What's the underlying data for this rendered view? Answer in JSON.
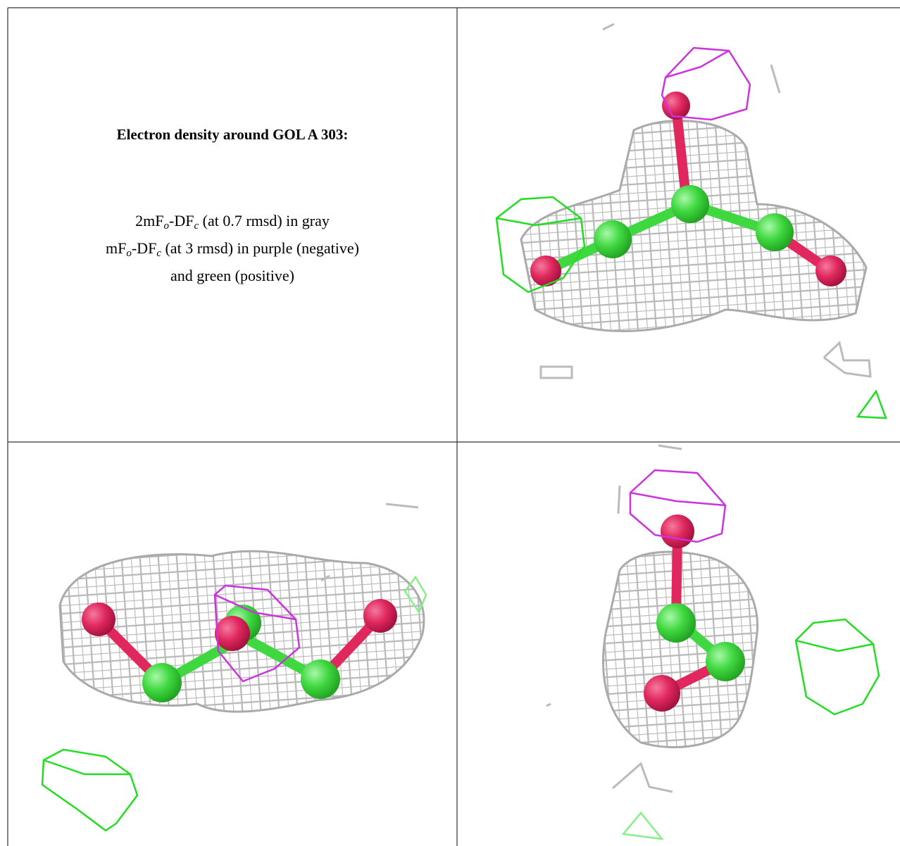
{
  "title": "Electron density around GOL A 303:",
  "legend_lines": [
    [
      "2mF",
      "o",
      "-DF",
      "c",
      " (at 0.7 rmsd) in gray"
    ],
    [
      "mF",
      "o",
      "-DF",
      "c",
      " (at 3 rmsd) in purple (negative)"
    ],
    [
      "and green (positive)"
    ]
  ]
}
